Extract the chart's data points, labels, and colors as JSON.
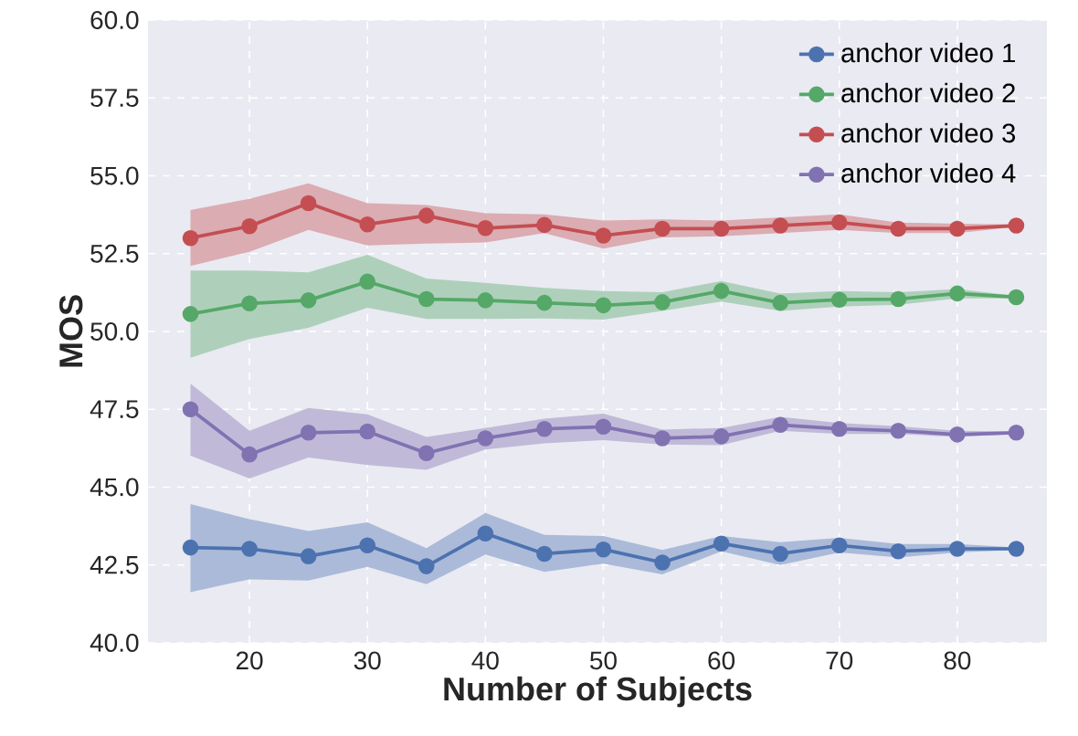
{
  "chart_data": {
    "type": "line",
    "xlabel": "Number of Subjects",
    "ylabel": "MOS",
    "x": [
      15,
      20,
      25,
      30,
      35,
      40,
      45,
      50,
      55,
      60,
      65,
      70,
      75,
      80,
      85
    ],
    "xlim": [
      11.4,
      87.6
    ],
    "ylim": [
      40,
      60
    ],
    "xticks": [
      20,
      30,
      40,
      50,
      60,
      70,
      80
    ],
    "yticks": [
      {
        "value": 40,
        "label": "40.0"
      },
      42.5,
      {
        "value": 45,
        "label": "45.0"
      },
      47.5,
      {
        "value": 50,
        "label": "50.0"
      },
      52.5,
      {
        "value": 55,
        "label": "55.0"
      },
      57.5,
      {
        "value": 60,
        "label": "60.0"
      }
    ],
    "grid": true,
    "legend": "top right",
    "marker": "circle",
    "line_style": "solid",
    "series": [
      {
        "name": "anchor video 1",
        "color": "#4c72b0",
        "values": [
          43.06,
          43.02,
          42.78,
          43.13,
          42.46,
          43.51,
          42.86,
          43.0,
          42.58,
          43.19,
          42.86,
          43.13,
          42.94,
          43.02,
          43.02
        ],
        "lower": [
          41.63,
          42.04,
          42.0,
          42.44,
          41.88,
          42.84,
          42.28,
          42.54,
          42.2,
          42.94,
          42.5,
          42.9,
          42.74,
          42.9,
          42.98
        ],
        "upper": [
          44.46,
          43.97,
          43.59,
          43.87,
          43.04,
          44.17,
          43.47,
          43.43,
          42.98,
          43.43,
          43.23,
          43.37,
          43.17,
          43.17,
          43.06
        ]
      },
      {
        "name": "anchor video 2",
        "color": "#55a868",
        "values": [
          50.56,
          50.9,
          51.0,
          51.6,
          51.04,
          51.0,
          50.92,
          50.84,
          50.94,
          51.3,
          50.92,
          51.02,
          51.04,
          51.22,
          51.1
        ],
        "lower": [
          49.16,
          49.76,
          50.12,
          50.76,
          50.4,
          50.4,
          50.42,
          50.38,
          50.66,
          50.96,
          50.66,
          50.8,
          50.86,
          51.06,
          51.06
        ],
        "upper": [
          51.96,
          51.96,
          51.9,
          52.46,
          51.7,
          51.56,
          51.4,
          51.3,
          51.26,
          51.62,
          51.22,
          51.3,
          51.26,
          51.36,
          51.14
        ]
      },
      {
        "name": "anchor video 3",
        "color": "#c44e52",
        "values": [
          53.0,
          53.38,
          54.12,
          53.44,
          53.72,
          53.32,
          53.42,
          53.08,
          53.3,
          53.3,
          53.4,
          53.5,
          53.3,
          53.3,
          53.4
        ],
        "lower": [
          52.1,
          52.56,
          53.26,
          52.76,
          52.82,
          52.86,
          53.16,
          52.66,
          53.02,
          53.06,
          53.16,
          53.26,
          53.16,
          53.16,
          53.36
        ],
        "upper": [
          53.9,
          54.26,
          54.76,
          54.12,
          54.06,
          53.8,
          53.76,
          53.56,
          53.6,
          53.56,
          53.66,
          53.76,
          53.5,
          53.46,
          53.44
        ]
      },
      {
        "name": "anchor video 4",
        "color": "#8172b2",
        "values": [
          47.5,
          46.05,
          46.75,
          46.79,
          46.09,
          46.57,
          46.87,
          46.94,
          46.57,
          46.63,
          47.0,
          46.87,
          46.81,
          46.69,
          46.75
        ],
        "lower": [
          46.01,
          45.28,
          45.95,
          45.71,
          45.56,
          46.21,
          46.41,
          46.51,
          46.37,
          46.35,
          46.81,
          46.71,
          46.71,
          46.61,
          46.71
        ],
        "upper": [
          48.33,
          46.81,
          47.54,
          47.34,
          46.61,
          46.9,
          47.2,
          47.36,
          46.85,
          46.9,
          47.26,
          47.06,
          46.96,
          46.81,
          46.79
        ]
      }
    ]
  }
}
